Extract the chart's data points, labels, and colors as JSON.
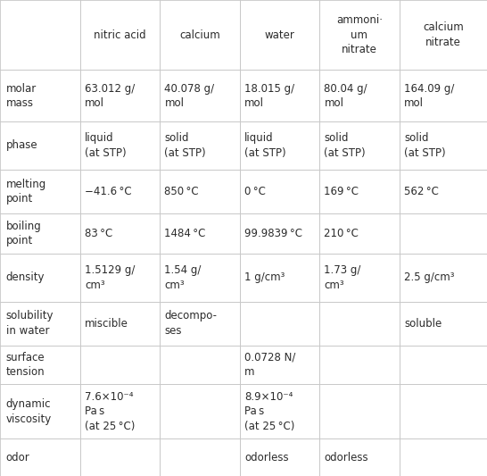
{
  "col_headers": [
    "",
    "nitric acid",
    "calcium",
    "water",
    "ammoni·\num\nnitrate",
    "calcium\nnitrate"
  ],
  "row_labels": [
    "molar\nmass",
    "phase",
    "melting\npoint",
    "boiling\npoint",
    "density",
    "solubility\nin water",
    "surface\ntension",
    "dynamic\nviscosity",
    "odor"
  ],
  "cells": [
    [
      "63.012 g/\nmol",
      "40.078 g/\nmol",
      "18.015 g/\nmol",
      "80.04 g/\nmol",
      "164.09 g/\nmol"
    ],
    [
      "liquid\n(at STP)",
      "solid\n(at STP)",
      "liquid\n(at STP)",
      "solid\n(at STP)",
      "solid\n(at STP)"
    ],
    [
      "−41.6 °C",
      "850 °C",
      "0 °C",
      "169 °C",
      "562 °C"
    ],
    [
      "83 °C",
      "1484 °C",
      "99.9839 °C",
      "210 °C",
      ""
    ],
    [
      "1.5129 g/\ncm³",
      "1.54 g/\ncm³",
      "1 g/cm³",
      "1.73 g/\ncm³",
      "2.5 g/cm³"
    ],
    [
      "miscible",
      "decompo-\nses",
      "",
      "",
      "soluble"
    ],
    [
      "",
      "",
      "0.0728 N/\nm",
      "",
      ""
    ],
    [
      "7.6×10⁻⁴\nPa s\n(at 25 °C)",
      "",
      "8.9×10⁻⁴\nPa s\n(at 25 °C)",
      "",
      ""
    ],
    [
      "",
      "",
      "odorless",
      "odorless",
      ""
    ]
  ],
  "border_color": "#c8c8c8",
  "text_color": "#2b2b2b",
  "bg_color": "#ffffff",
  "fontsize": 8.5,
  "col_widths_rel": [
    1.0,
    1.0,
    1.0,
    1.0,
    1.0,
    1.1
  ],
  "row_heights_rel": [
    1.35,
    1.0,
    0.92,
    0.85,
    0.78,
    0.92,
    0.85,
    0.75,
    1.05,
    0.72
  ]
}
